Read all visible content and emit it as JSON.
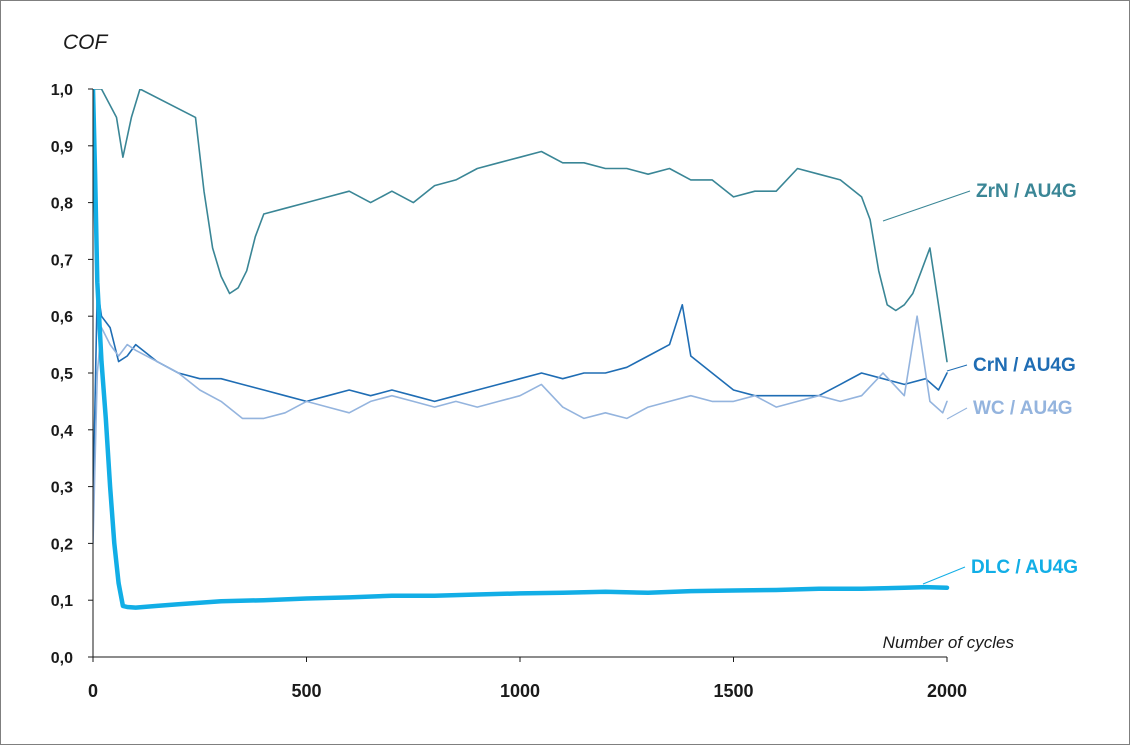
{
  "chart_data": {
    "type": "line",
    "title": "",
    "ylabel": "COF",
    "xlabel": "Number of cycles",
    "xlim": [
      0,
      2000
    ],
    "ylim": [
      0,
      1.0
    ],
    "x_ticks": [
      0,
      500,
      1000,
      1500,
      2000
    ],
    "x_tick_labels": [
      "0",
      "500",
      "1000",
      "1500",
      "2000"
    ],
    "y_ticks": [
      0,
      0.1,
      0.2,
      0.3,
      0.4,
      0.5,
      0.6,
      0.7,
      0.8,
      0.9,
      1.0
    ],
    "y_tick_labels": [
      "0,0",
      "0,1",
      "0,2",
      "0,3",
      "0,4",
      "0,5",
      "0,6",
      "0,7",
      "0,8",
      "0,9",
      "1,0"
    ],
    "grid": false,
    "legend": "none",
    "series": [
      {
        "name": "ZrN / AU4G",
        "color": "#3a8696",
        "x": [
          0,
          20,
          55,
          70,
          90,
          110,
          240,
          260,
          280,
          300,
          320,
          340,
          360,
          380,
          400,
          450,
          500,
          550,
          600,
          650,
          700,
          750,
          800,
          850,
          900,
          950,
          1000,
          1050,
          1100,
          1150,
          1200,
          1250,
          1300,
          1350,
          1400,
          1450,
          1500,
          1550,
          1600,
          1650,
          1700,
          1750,
          1800,
          1820,
          1840,
          1860,
          1880,
          1900,
          1920,
          1940,
          1960,
          1980,
          2000
        ],
        "y": [
          1.0,
          1.0,
          0.95,
          0.88,
          0.95,
          1.0,
          0.95,
          0.82,
          0.72,
          0.67,
          0.64,
          0.65,
          0.68,
          0.74,
          0.78,
          0.79,
          0.8,
          0.81,
          0.82,
          0.8,
          0.82,
          0.8,
          0.83,
          0.84,
          0.86,
          0.87,
          0.88,
          0.89,
          0.87,
          0.87,
          0.86,
          0.86,
          0.85,
          0.86,
          0.84,
          0.84,
          0.81,
          0.82,
          0.82,
          0.86,
          0.85,
          0.84,
          0.81,
          0.77,
          0.68,
          0.62,
          0.61,
          0.62,
          0.64,
          0.68,
          0.72,
          0.62,
          0.52
        ]
      },
      {
        "name": "CrN / AU4G",
        "color": "#1f6db4",
        "x": [
          0,
          10,
          20,
          40,
          60,
          80,
          100,
          150,
          200,
          250,
          300,
          350,
          400,
          450,
          500,
          550,
          600,
          650,
          700,
          750,
          800,
          850,
          900,
          950,
          1000,
          1050,
          1100,
          1150,
          1200,
          1250,
          1300,
          1350,
          1380,
          1400,
          1450,
          1500,
          1550,
          1600,
          1650,
          1700,
          1750,
          1800,
          1850,
          1900,
          1950,
          1980,
          2000
        ],
        "y": [
          0.27,
          0.65,
          0.6,
          0.58,
          0.52,
          0.53,
          0.55,
          0.52,
          0.5,
          0.49,
          0.49,
          0.48,
          0.47,
          0.46,
          0.45,
          0.46,
          0.47,
          0.46,
          0.47,
          0.46,
          0.45,
          0.46,
          0.47,
          0.48,
          0.49,
          0.5,
          0.49,
          0.5,
          0.5,
          0.51,
          0.53,
          0.55,
          0.62,
          0.53,
          0.5,
          0.47,
          0.46,
          0.46,
          0.46,
          0.46,
          0.48,
          0.5,
          0.49,
          0.48,
          0.49,
          0.47,
          0.5
        ]
      },
      {
        "name": "WC / AU4G",
        "color": "#94b4de",
        "x": [
          0,
          10,
          20,
          40,
          60,
          80,
          100,
          150,
          200,
          250,
          300,
          350,
          400,
          450,
          500,
          550,
          600,
          650,
          700,
          750,
          800,
          850,
          900,
          950,
          1000,
          1050,
          1100,
          1150,
          1200,
          1250,
          1300,
          1350,
          1400,
          1450,
          1500,
          1550,
          1600,
          1650,
          1700,
          1750,
          1800,
          1850,
          1900,
          1930,
          1960,
          1990,
          2000
        ],
        "y": [
          0.2,
          0.5,
          0.58,
          0.55,
          0.53,
          0.55,
          0.54,
          0.52,
          0.5,
          0.47,
          0.45,
          0.42,
          0.42,
          0.43,
          0.45,
          0.44,
          0.43,
          0.45,
          0.46,
          0.45,
          0.44,
          0.45,
          0.44,
          0.45,
          0.46,
          0.48,
          0.44,
          0.42,
          0.43,
          0.42,
          0.44,
          0.45,
          0.46,
          0.45,
          0.45,
          0.46,
          0.44,
          0.45,
          0.46,
          0.45,
          0.46,
          0.5,
          0.46,
          0.6,
          0.45,
          0.43,
          0.45
        ]
      },
      {
        "name": "DLC / AU4G",
        "color": "#12aee6",
        "x": [
          0,
          5,
          10,
          20,
          30,
          40,
          50,
          60,
          70,
          80,
          100,
          150,
          200,
          300,
          400,
          500,
          600,
          700,
          800,
          900,
          1000,
          1100,
          1200,
          1300,
          1400,
          1500,
          1600,
          1700,
          1800,
          1900,
          1950,
          2000
        ],
        "y": [
          1.0,
          0.85,
          0.66,
          0.52,
          0.42,
          0.3,
          0.2,
          0.13,
          0.09,
          0.088,
          0.087,
          0.09,
          0.093,
          0.098,
          0.1,
          0.103,
          0.105,
          0.108,
          0.108,
          0.11,
          0.112,
          0.113,
          0.115,
          0.113,
          0.116,
          0.117,
          0.118,
          0.12,
          0.12,
          0.122,
          0.123,
          0.122
        ]
      }
    ]
  }
}
